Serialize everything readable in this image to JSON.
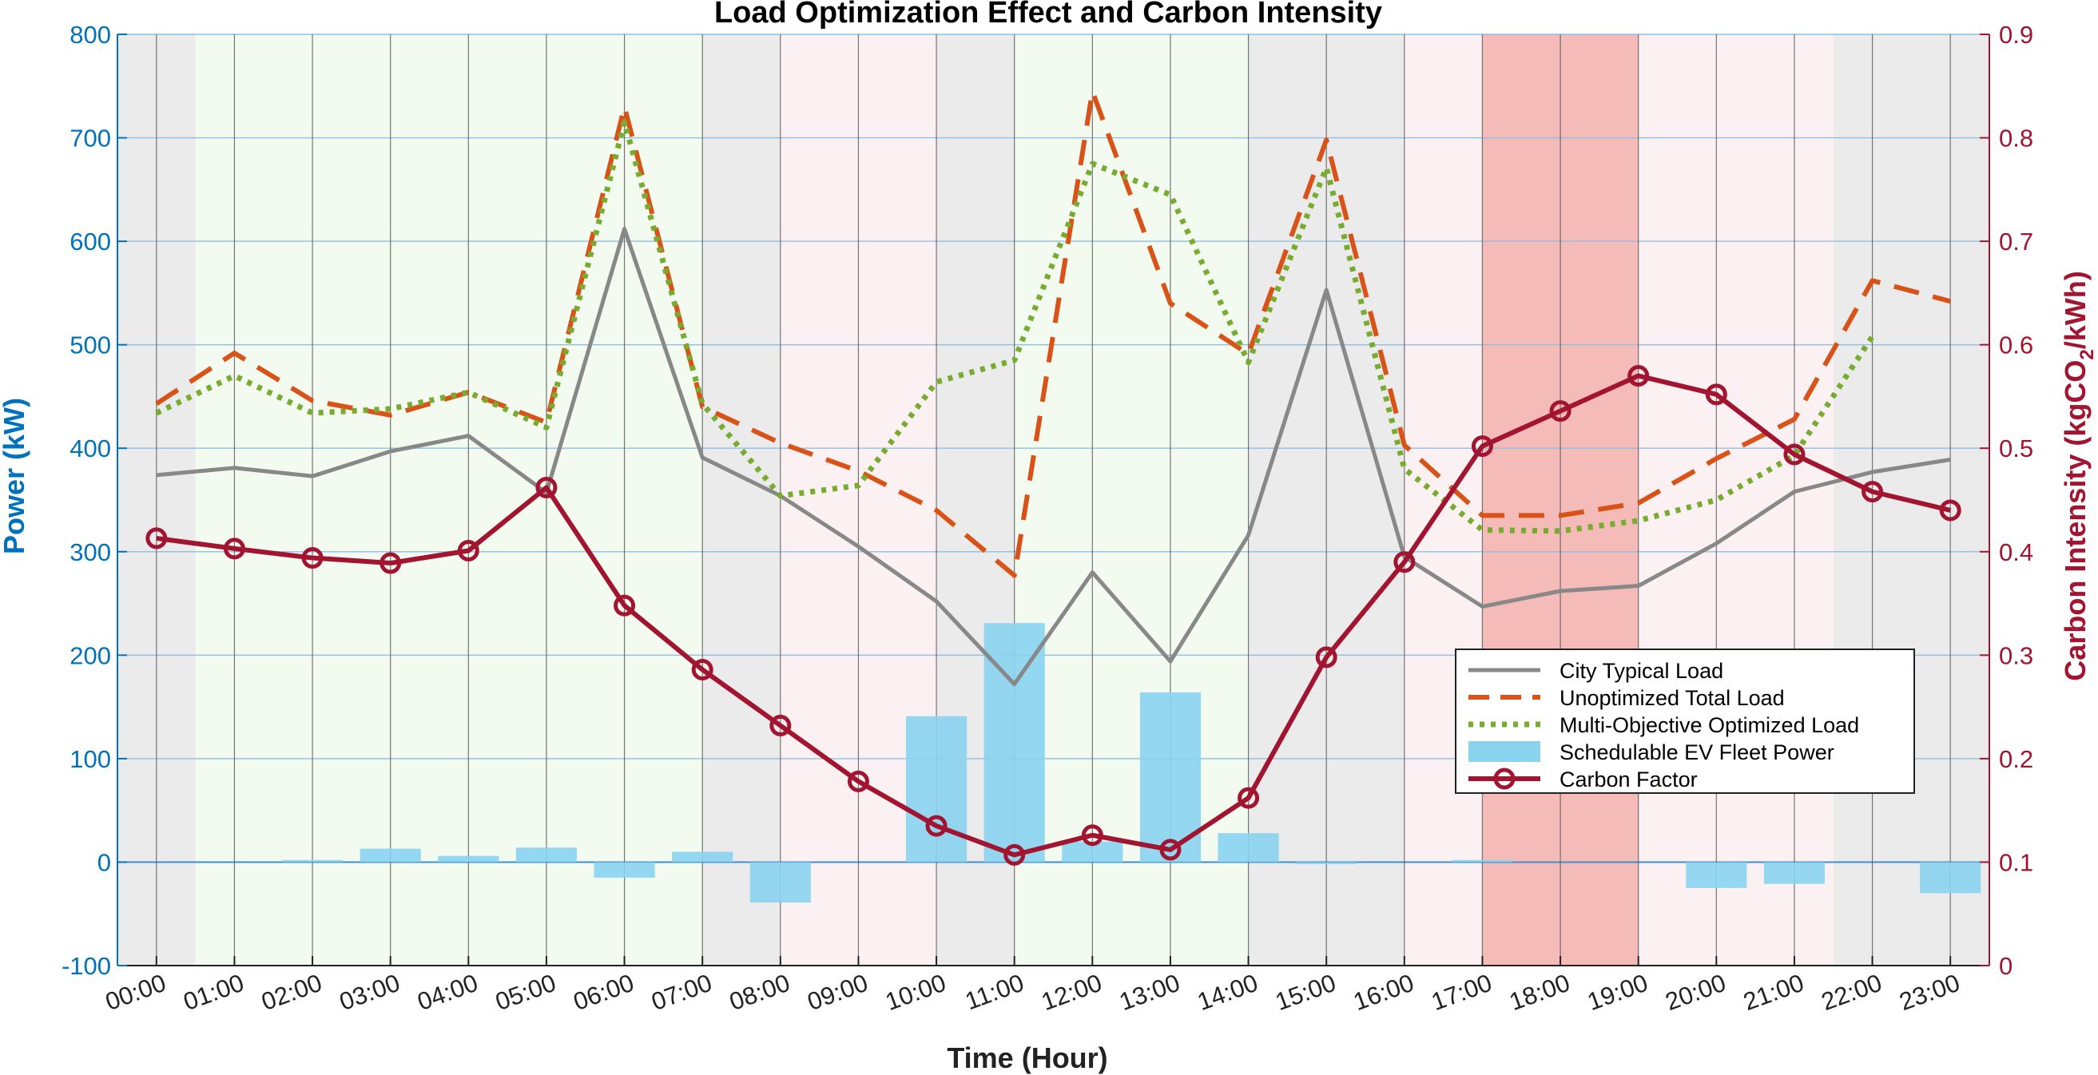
{
  "chart_data": {
    "type": "line",
    "title": "Load Optimization Effect and Carbon Intensity",
    "xlabel": "Time (Hour)",
    "ylabel_left": "Power (kW)",
    "ylabel_right_prefix": "Carbon Intensity (kgCO",
    "ylabel_right_sub": "2",
    "ylabel_right_suffix": "/kWh)",
    "categories": [
      "00:00",
      "01:00",
      "02:00",
      "03:00",
      "04:00",
      "05:00",
      "06:00",
      "07:00",
      "08:00",
      "09:00",
      "10:00",
      "11:00",
      "12:00",
      "13:00",
      "14:00",
      "15:00",
      "16:00",
      "17:00",
      "18:00",
      "19:00",
      "20:00",
      "21:00",
      "22:00",
      "23:00"
    ],
    "ylim_left": [
      -100,
      800
    ],
    "yticks_left": [
      -100,
      0,
      100,
      200,
      300,
      400,
      500,
      600,
      700,
      800
    ],
    "ylim_right": [
      0,
      0.9
    ],
    "yticks_right": [
      0,
      0.1,
      0.2,
      0.3,
      0.4,
      0.5,
      0.6,
      0.7,
      0.8,
      0.9
    ],
    "x_range": [
      -0.5,
      23.5
    ],
    "grid": true,
    "legend_position": "lower-right",
    "period_shading": [
      {
        "period": "flat",
        "color": "#ebebeb",
        "alpha": 1,
        "hours": [
          [
            -0.5,
            0.5
          ],
          [
            7,
            8
          ],
          [
            10,
            11
          ],
          [
            14,
            16
          ],
          [
            21.5,
            23.5
          ]
        ]
      },
      {
        "period": "valley",
        "color": "#f3faef",
        "alpha": 1,
        "hours": [
          [
            0.5,
            7
          ],
          [
            11,
            14
          ]
        ]
      },
      {
        "period": "peak",
        "color": "#fcf1f2",
        "alpha": 1,
        "hours": [
          [
            8,
            10
          ],
          [
            16,
            17
          ],
          [
            19,
            21.5
          ]
        ]
      },
      {
        "period": "critical peak",
        "color": "#f5bbb8",
        "alpha": 1,
        "hours": [
          [
            17,
            19
          ]
        ]
      }
    ],
    "series": [
      {
        "name": "City Typical Load",
        "axis": "left",
        "style": "solid",
        "color": "#888888",
        "values": [
          374,
          381,
          373,
          397,
          412,
          357,
          612,
          391,
          354,
          305,
          252,
          172,
          280,
          194,
          316,
          553,
          295,
          247,
          262,
          267,
          308,
          358,
          377,
          389
        ]
      },
      {
        "name": "Unoptimized Total Load",
        "axis": "left",
        "style": "dashed",
        "color": "#d95319",
        "values": [
          443,
          492,
          446,
          432,
          454,
          425,
          730,
          440,
          405,
          378,
          340,
          277,
          745,
          540,
          491,
          698,
          403,
          335,
          335,
          347,
          390,
          428,
          562,
          542
        ]
      },
      {
        "name": "Multi-Objective Optimized Load",
        "axis": "left",
        "style": "dotted",
        "color": "#77ac30",
        "values": [
          434,
          470,
          434,
          438,
          454,
          420,
          715,
          443,
          354,
          364,
          464,
          485,
          675,
          645,
          483,
          671,
          380,
          321,
          320,
          330,
          350,
          393,
          508,
          null
        ]
      },
      {
        "name": "Schedulable EV Fleet Power",
        "axis": "left",
        "style": "bar",
        "color": "#89d3ef",
        "values": [
          0,
          0,
          2,
          13,
          6,
          14,
          -15,
          10,
          -39,
          0,
          141,
          231,
          20,
          164,
          28,
          -2,
          0,
          2,
          0,
          0,
          -25,
          -21,
          0,
          -30
        ]
      },
      {
        "name": "Carbon Factor",
        "axis": "right",
        "style": "line-marker",
        "color": "#a2142f",
        "values": [
          0.413,
          0.403,
          0.394,
          0.389,
          0.401,
          0.462,
          0.348,
          0.286,
          0.232,
          0.178,
          0.135,
          0.107,
          0.126,
          0.112,
          0.162,
          0.298,
          0.39,
          0.502,
          0.536,
          0.57,
          0.552,
          0.494,
          0.458,
          0.44
        ]
      }
    ]
  }
}
